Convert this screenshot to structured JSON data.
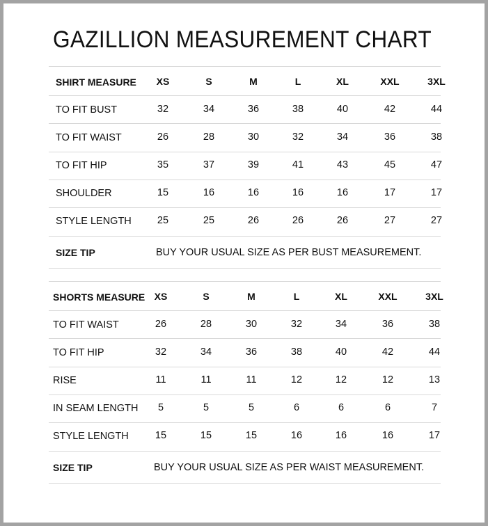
{
  "title": "GAZILLION MEASUREMENT CHART",
  "tables": [
    {
      "header": "SHIRT MEASURE",
      "sizes": [
        "XS",
        "S",
        "M",
        "L",
        "XL",
        "XXL",
        "3XL"
      ],
      "rows": [
        {
          "label": "TO FIT BUST",
          "values": [
            "32",
            "34",
            "36",
            "38",
            "40",
            "42",
            "44"
          ]
        },
        {
          "label": "TO FIT WAIST",
          "values": [
            "26",
            "28",
            "30",
            "32",
            "34",
            "36",
            "38"
          ]
        },
        {
          "label": "TO FIT HIP",
          "values": [
            "35",
            "37",
            "39",
            "41",
            "43",
            "45",
            "47"
          ]
        },
        {
          "label": "SHOULDER",
          "values": [
            "15",
            "16",
            "16",
            "16",
            "16",
            "17",
            "17"
          ]
        },
        {
          "label": "STYLE LENGTH",
          "values": [
            "25",
            "25",
            "26",
            "26",
            "26",
            "27",
            "27"
          ]
        }
      ],
      "size_tip_label": "SIZE TIP",
      "size_tip": "BUY YOUR USUAL SIZE AS PER BUST MEASUREMENT."
    },
    {
      "header": "SHORTS MEASURE",
      "sizes": [
        "XS",
        "S",
        "M",
        "L",
        "XL",
        "XXL",
        "3XL"
      ],
      "rows": [
        {
          "label": "TO FIT WAIST",
          "values": [
            "26",
            "28",
            "30",
            "32",
            "34",
            "36",
            "38"
          ]
        },
        {
          "label": "TO FIT HIP",
          "values": [
            "32",
            "34",
            "36",
            "38",
            "40",
            "42",
            "44"
          ]
        },
        {
          "label": "RISE",
          "values": [
            "11",
            "11",
            "11",
            "12",
            "12",
            "12",
            "13"
          ]
        },
        {
          "label": "IN SEAM LENGTH",
          "values": [
            "5",
            "5",
            "5",
            "6",
            "6",
            "6",
            "7"
          ]
        },
        {
          "label": "STYLE LENGTH",
          "values": [
            "15",
            "15",
            "15",
            "16",
            "16",
            "16",
            "17"
          ]
        }
      ],
      "size_tip_label": "SIZE TIP",
      "size_tip": "BUY YOUR USUAL SIZE AS PER WAIST MEASUREMENT."
    }
  ]
}
